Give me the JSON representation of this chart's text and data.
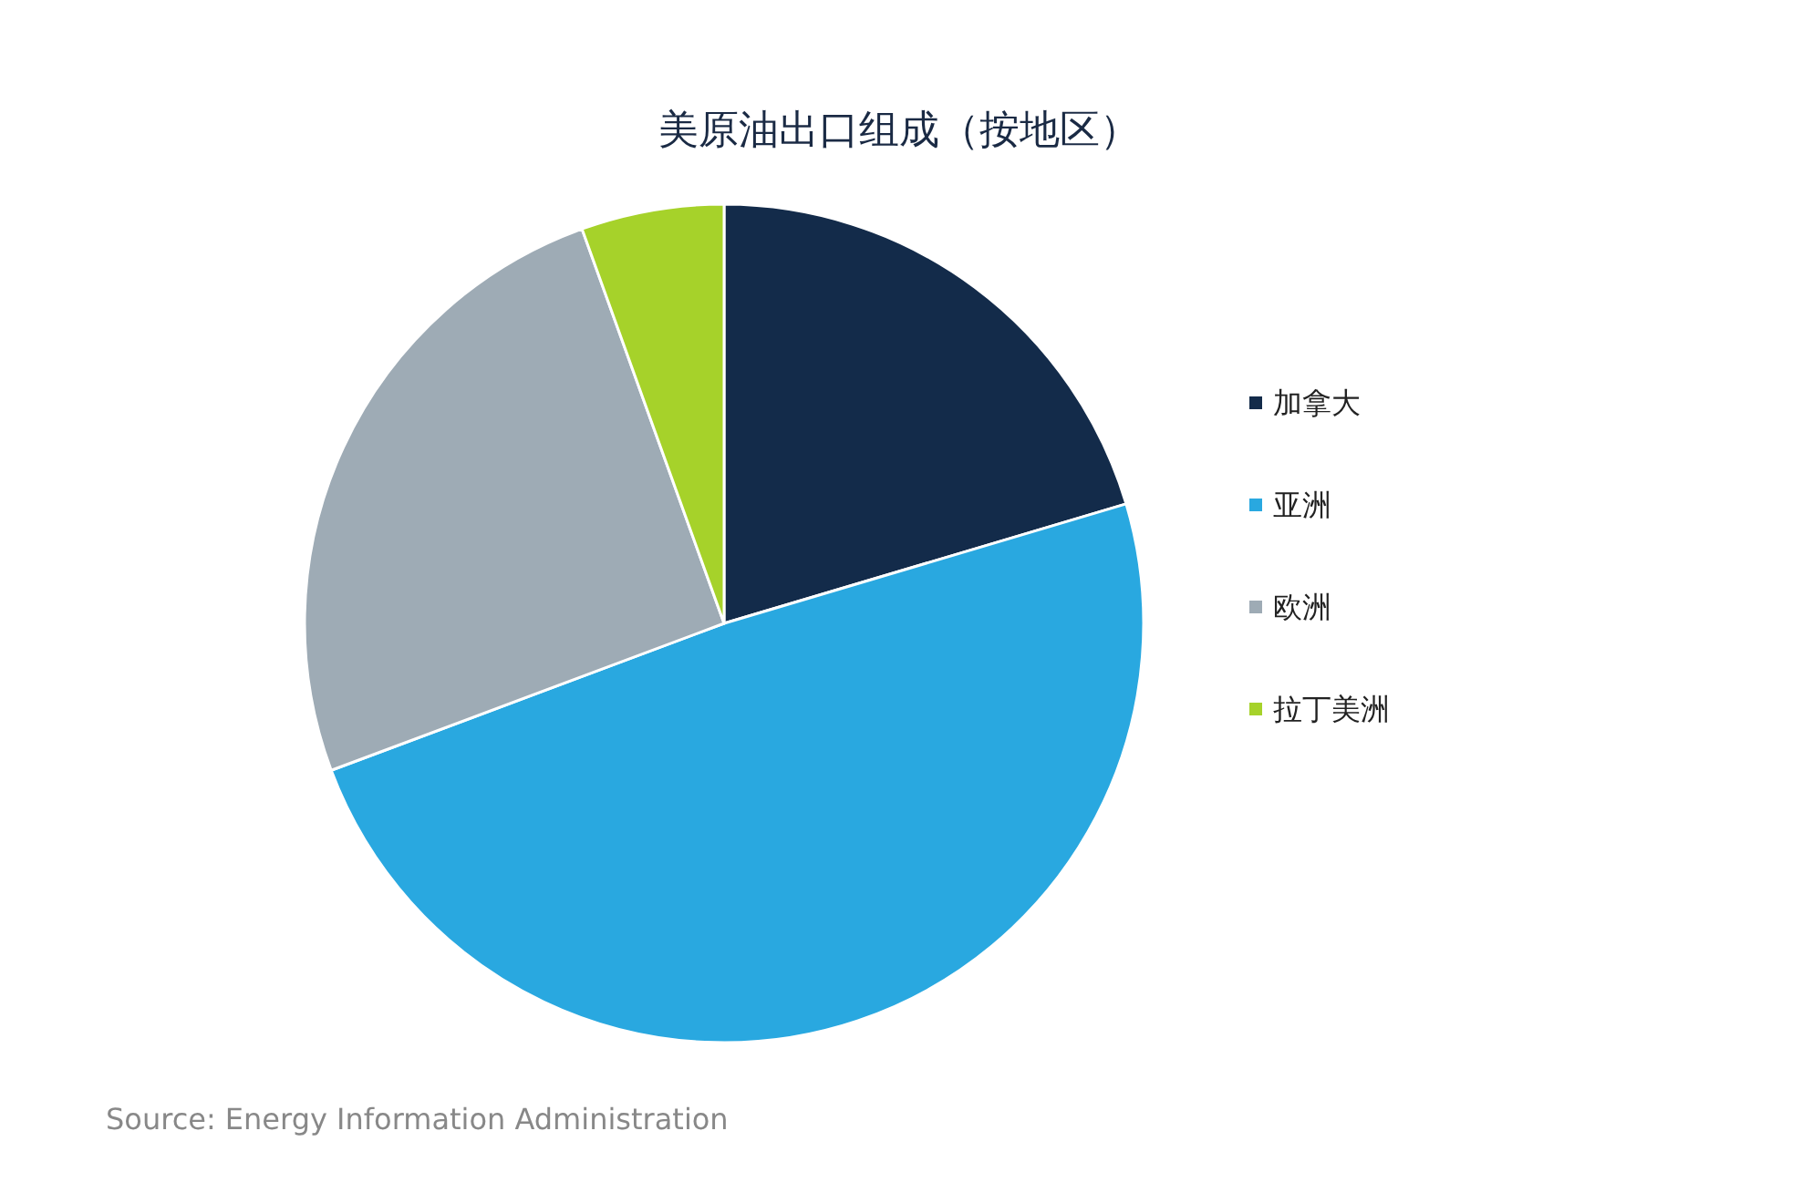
{
  "chart_data": {
    "type": "pie",
    "title": "美原油出口组成（按地区）",
    "categories": [
      "加拿大",
      "亚洲",
      "欧洲",
      "拉丁美洲"
    ],
    "values": [
      20.4,
      48.9,
      25.2,
      5.5
    ],
    "colors": [
      "#132b4a",
      "#29a8e0",
      "#9eabb5",
      "#a6d22a"
    ],
    "legend": "right",
    "annotations": [
      "Source: Energy Information Administration"
    ]
  }
}
